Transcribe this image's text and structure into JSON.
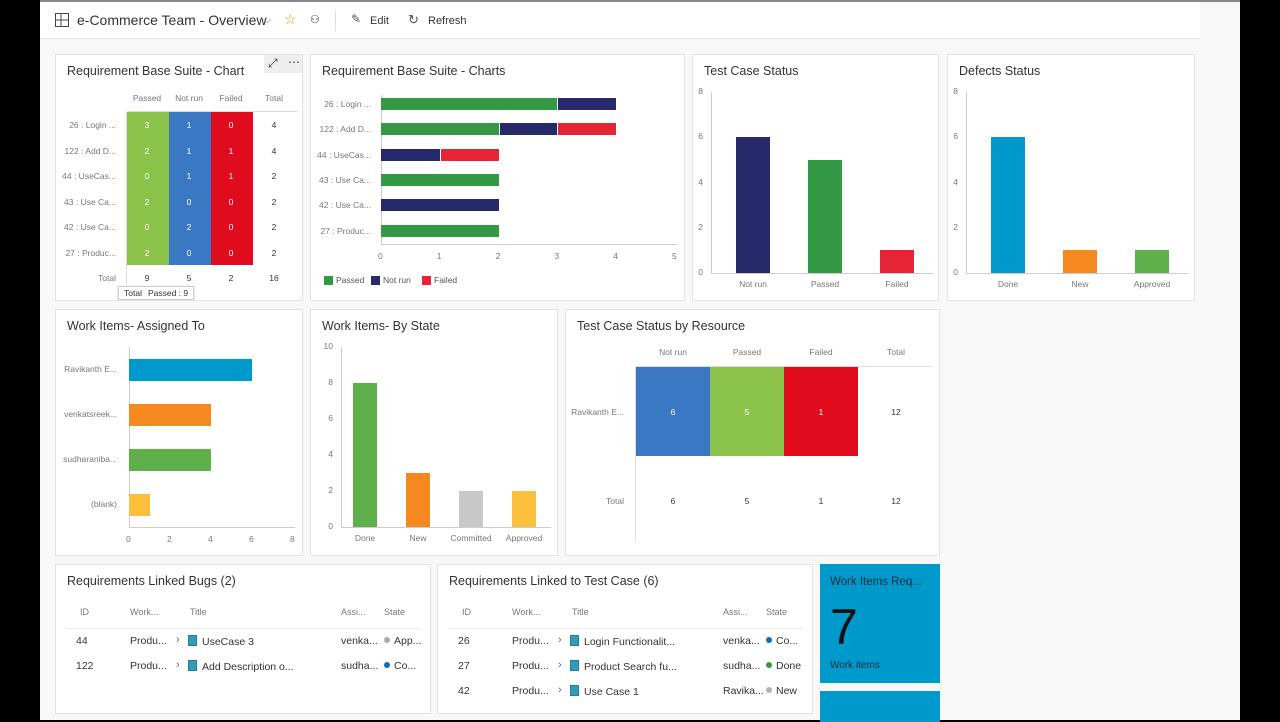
{
  "header": {
    "title": "e-Commerce Team - Overview",
    "edit": "Edit",
    "refresh": "Refresh"
  },
  "colors": {
    "passed": "#8bc34a",
    "not_run": "#3a78c3",
    "failed": "#e00b1c",
    "green": "#339944",
    "navy": "#262a6a",
    "red": "#e52535",
    "blue": "#0099cc",
    "orange": "#f5891f",
    "lightgreen": "#5fb04a",
    "yellow": "#fbbf3c",
    "gray": "#c8c8c8"
  },
  "w1": {
    "title": "Requirement Base Suite - Chart",
    "columns": [
      "Passed",
      "Not run",
      "Failed",
      "Total"
    ],
    "rows": [
      {
        "label": "26 : Login ...",
        "v": [
          "3",
          "1",
          "0",
          "4"
        ]
      },
      {
        "label": "122 : Add D...",
        "v": [
          "2",
          "1",
          "1",
          "4"
        ]
      },
      {
        "label": "44 : UseCas...",
        "v": [
          "0",
          "1",
          "1",
          "2"
        ]
      },
      {
        "label": "43 : Use Ca...",
        "v": [
          "2",
          "0",
          "0",
          "2"
        ]
      },
      {
        "label": "42 : Use Ca...",
        "v": [
          "0",
          "2",
          "0",
          "2"
        ]
      },
      {
        "label": "27 : Produc...",
        "v": [
          "2",
          "0",
          "0",
          "2"
        ]
      }
    ],
    "total": {
      "label": "Total",
      "v": [
        "9",
        "5",
        "2",
        "16"
      ]
    },
    "tooltip": {
      "title": "Total",
      "text": "Passed : 9"
    }
  },
  "chart_data": [
    {
      "type": "bar",
      "orientation": "horizontal",
      "stacked": true,
      "title": "Requirement Base Suite - Charts",
      "categories": [
        "26 : Login ...",
        "122 : Add D...",
        "44 : UseCas...",
        "43 : Use Ca...",
        "42 : Use Ca...",
        "27 : Produc..."
      ],
      "series": [
        {
          "name": "Passed",
          "values": [
            3,
            2,
            0,
            2,
            0,
            2
          ]
        },
        {
          "name": "Not run",
          "values": [
            1,
            1,
            1,
            0,
            2,
            0
          ]
        },
        {
          "name": "Failed",
          "values": [
            0,
            1,
            1,
            0,
            0,
            0
          ]
        }
      ],
      "xlim": [
        0,
        5
      ],
      "xticks": [
        "0",
        "1",
        "2",
        "3",
        "4",
        "5"
      ],
      "legend": "bottom"
    },
    {
      "type": "bar",
      "title": "Test Case Status",
      "categories": [
        "Not run",
        "Passed",
        "Failed"
      ],
      "values": [
        6,
        5,
        1
      ],
      "ylim": [
        0,
        8
      ],
      "yticks": [
        "0",
        "2",
        "4",
        "6",
        "8"
      ]
    },
    {
      "type": "bar",
      "title": "Defects Status",
      "categories": [
        "Done",
        "New",
        "Approved"
      ],
      "values": [
        6,
        1,
        1
      ],
      "ylim": [
        0,
        8
      ],
      "yticks": [
        "0",
        "2",
        "4",
        "6",
        "8"
      ]
    },
    {
      "type": "bar",
      "orientation": "horizontal",
      "title": "Work Items- Assigned To",
      "categories": [
        "Ravikanth E...",
        "venkatsreek...",
        "sudharaniba...",
        "(blank)"
      ],
      "values": [
        6,
        4,
        4,
        1
      ],
      "xlim": [
        0,
        8
      ],
      "xticks": [
        "0",
        "2",
        "4",
        "6",
        "8"
      ]
    },
    {
      "type": "bar",
      "title": "Work Items- By State",
      "categories": [
        "Done",
        "New",
        "Committed",
        "Approved"
      ],
      "values": [
        8,
        3,
        2,
        2
      ],
      "ylim": [
        0,
        10
      ],
      "yticks": [
        "0",
        "2",
        "4",
        "6",
        "8",
        "10"
      ]
    }
  ],
  "w7": {
    "title": "Test Case Status by Resource",
    "columns": [
      "Not run",
      "Passed",
      "Failed",
      "Total"
    ],
    "row": {
      "label": "Ravikanth E...",
      "v": [
        "6",
        "5",
        "1",
        "12"
      ]
    },
    "total": {
      "label": "Total",
      "v": [
        "6",
        "5",
        "1",
        "12"
      ]
    }
  },
  "w8": {
    "title": "Requirements Linked Bugs (2)",
    "columns": [
      "ID",
      "Work...",
      "Title",
      "Assi...",
      "State"
    ],
    "rows": [
      {
        "id": "44",
        "type": "Produ...",
        "title": "UseCase 3",
        "assigned": "venka...",
        "state": "App...",
        "dot": "#aaaaaa"
      },
      {
        "id": "122",
        "type": "Produ...",
        "title": "Add Description o...",
        "assigned": "sudha...",
        "state": "Co...",
        "dot": "#0a6ebd"
      }
    ]
  },
  "w9": {
    "title": "Requirements Linked to Test Case (6)",
    "columns": [
      "ID",
      "Work...",
      "Title",
      "Assi...",
      "State"
    ],
    "rows": [
      {
        "id": "26",
        "type": "Produ...",
        "title": "Login Functionalit...",
        "assigned": "venka...",
        "state": "Co...",
        "dot": "#0a6ebd"
      },
      {
        "id": "27",
        "type": "Produ...",
        "title": "Product Search fu...",
        "assigned": "sudha...",
        "state": "Done",
        "dot": "#339944"
      },
      {
        "id": "42",
        "type": "Produ...",
        "title": "Use Case 1",
        "assigned": "Ravika...",
        "state": "New",
        "dot": "#b2b2b2"
      }
    ]
  },
  "tile": {
    "title": "Work Items Req...",
    "count": "7",
    "label": "Work items"
  }
}
